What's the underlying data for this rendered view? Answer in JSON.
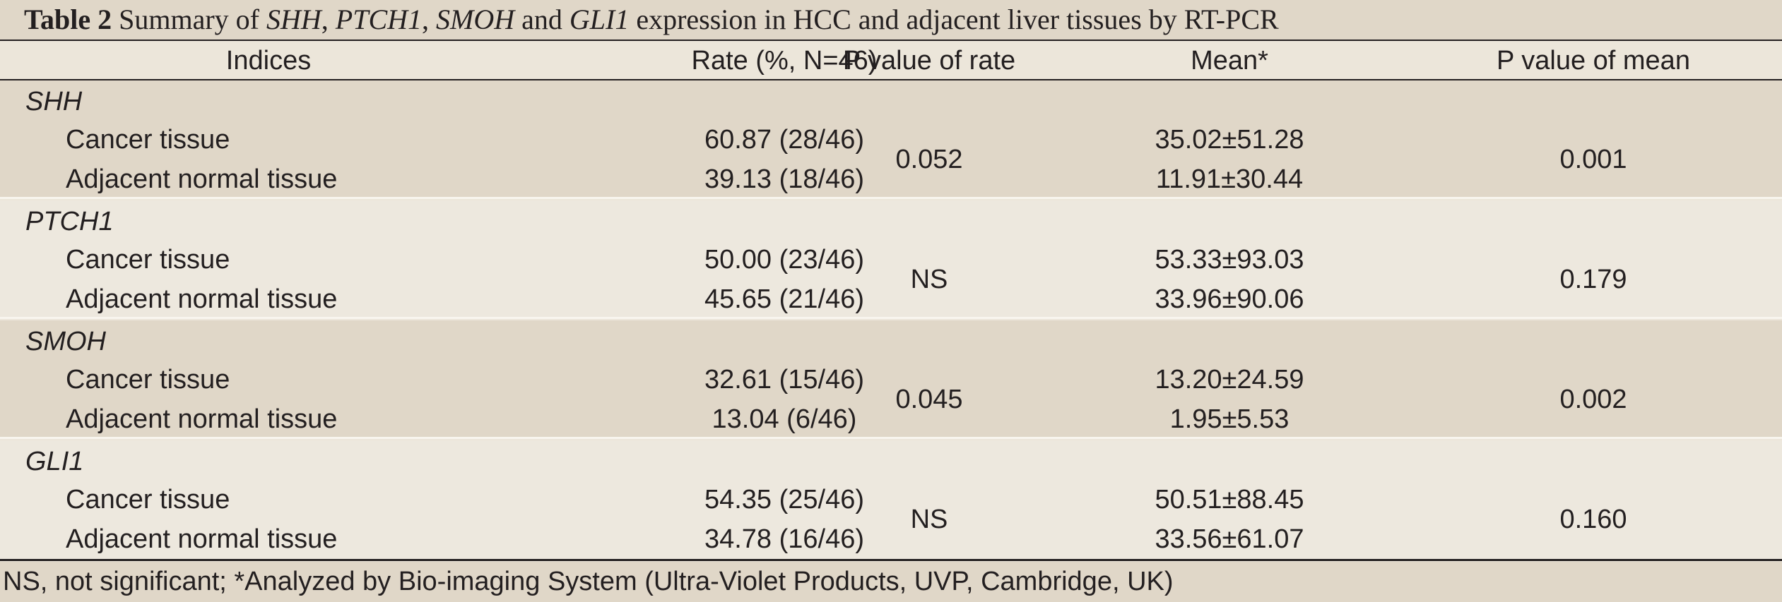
{
  "caption": {
    "label": "Table 2",
    "text_a": " Summary of ",
    "gene1": "SHH",
    "sep1": ", ",
    "gene2": "PTCH1",
    "sep2": ", ",
    "gene3": "SMOH",
    "sep3": " and ",
    "gene4": "GLI1",
    "text_b": " expression in HCC and adjacent liver tissues by RT-PCR"
  },
  "columns": [
    "Indices",
    "Rate (%, N=46)",
    "P value of rate",
    "Mean*",
    "P value of mean"
  ],
  "groups": [
    {
      "name": "SHH",
      "rows": [
        {
          "label": "Cancer tissue",
          "rate": "60.87 (28/46)",
          "mean": "35.02±51.28"
        },
        {
          "label": "Adjacent normal tissue",
          "rate": "39.13 (18/46)",
          "mean": "11.91±30.44"
        }
      ],
      "p_rate": "0.052",
      "p_mean": "0.001"
    },
    {
      "name": "PTCH1",
      "rows": [
        {
          "label": "Cancer tissue",
          "rate": "50.00 (23/46)",
          "mean": "53.33±93.03"
        },
        {
          "label": "Adjacent normal tissue",
          "rate": "45.65 (21/46)",
          "mean": "33.96±90.06"
        }
      ],
      "p_rate": "NS",
      "p_mean": "0.179"
    },
    {
      "name": "SMOH",
      "rows": [
        {
          "label": "Cancer tissue",
          "rate": "32.61 (15/46)",
          "mean": "13.20±24.59"
        },
        {
          "label": "Adjacent normal tissue",
          "rate": "13.04 (6/46)",
          "mean": "1.95±5.53"
        }
      ],
      "p_rate": "0.045",
      "p_mean": "0.002"
    },
    {
      "name": "GLI1",
      "rows": [
        {
          "label": "Cancer tissue",
          "rate": "54.35 (25/46)",
          "mean": "50.51±88.45"
        },
        {
          "label": "Adjacent normal tissue",
          "rate": "34.78 (16/46)",
          "mean": "33.56±61.07"
        }
      ],
      "p_rate": "NS",
      "p_mean": "0.160"
    }
  ],
  "footnote": "NS, not significant; *Analyzed by Bio-imaging System (Ultra-Violet Products, UVP, Cambridge, UK)",
  "colors": {
    "band_dark": "#e0d7c8",
    "band_light": "#ede8de",
    "text": "#231f20"
  }
}
